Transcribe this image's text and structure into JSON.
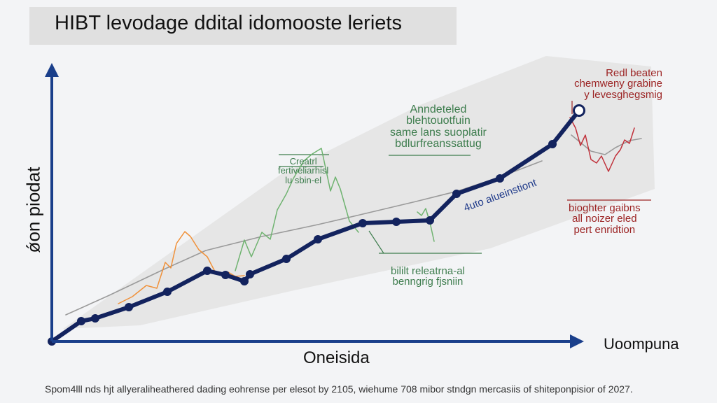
{
  "chart_data": {
    "type": "line",
    "title": "HIBT levodage ddital idomooste leriets",
    "ylabel": "ǿon piodat",
    "xlabel": "Oneisida",
    "x_end_label": "Uoompuna",
    "series": [
      {
        "color": "#13235e",
        "x": [
          0,
          42,
          62,
          110,
          165,
          222,
          248,
          275,
          283,
          335,
          380,
          444,
          492,
          540,
          578,
          640,
          715,
          753
        ],
        "y": [
          0,
          29,
          33,
          49,
          71,
          101,
          95,
          86,
          96,
          118,
          146,
          169,
          171,
          173,
          211,
          233,
          282,
          330
        ]
      },
      {
        "color": "#f0913a",
        "x": [
          95,
          115,
          135,
          150,
          162,
          170,
          178,
          190,
          198,
          210,
          222,
          235,
          252,
          262,
          275
        ],
        "y": [
          54,
          64,
          80,
          76,
          113,
          105,
          140,
          157,
          150,
          131,
          121,
          96,
          99,
          93,
          94
        ]
      },
      {
        "color": "#6fb370",
        "x": [
          262,
          275,
          285,
          300,
          312,
          322,
          335,
          345,
          360,
          372,
          385,
          398,
          405,
          412,
          425,
          438
        ],
        "y": [
          101,
          145,
          121,
          156,
          146,
          188,
          211,
          233,
          258,
          268,
          276,
          215,
          235,
          218,
          172,
          156
        ]
      },
      {
        "color": "#6fb370",
        "x": [
          522,
          528,
          534,
          540,
          546
        ],
        "y": [
          185,
          180,
          190,
          170,
          143
        ]
      },
      {
        "color": "#c0303a",
        "x": [
          740,
          748,
          755,
          762,
          770,
          778,
          785,
          795,
          805,
          812,
          818,
          825,
          832
        ],
        "y": [
          320,
          305,
          280,
          295,
          260,
          255,
          265,
          243,
          265,
          274,
          288,
          283,
          305
        ]
      },
      {
        "color": "#9a9a9a",
        "x": [
          20,
          80,
          160,
          220,
          300,
          380,
          440,
          520,
          580,
          640,
          700
        ],
        "y": [
          38,
          65,
          103,
          130,
          150,
          167,
          181,
          200,
          215,
          235,
          258
        ]
      },
      {
        "color": "#9a9a9a",
        "x": [
          742,
          770,
          790,
          805,
          825,
          842
        ],
        "y": [
          295,
          272,
          267,
          277,
          287,
          290
        ]
      }
    ],
    "annotations": {
      "top_green": [
        "Anndeteled",
        "blehtouotfuin",
        "same lans suoplatir",
        "bdlurfreanssattug"
      ],
      "mid_green": [
        "Creatrl",
        "fertiveliarhisl",
        "lu sbin-el"
      ],
      "bottom_green": [
        "bililt releatrna-al",
        "benngrig fjsniin"
      ],
      "top_red": [
        "Redl beaten",
        "chemweny grabine",
        "y levesghegsmig"
      ],
      "right_red": [
        "bioghter gaibns",
        "all noizer eled",
        "pert enridtion"
      ],
      "slanted_blue": "4uto alueinstiont"
    }
  },
  "footnote": "Spom4lll nds hjt allyeraliheathered dading eohrense per elesot by 2105, wiehume 708 mibor stndgn mercasiis of shiteponpisior of 2027."
}
